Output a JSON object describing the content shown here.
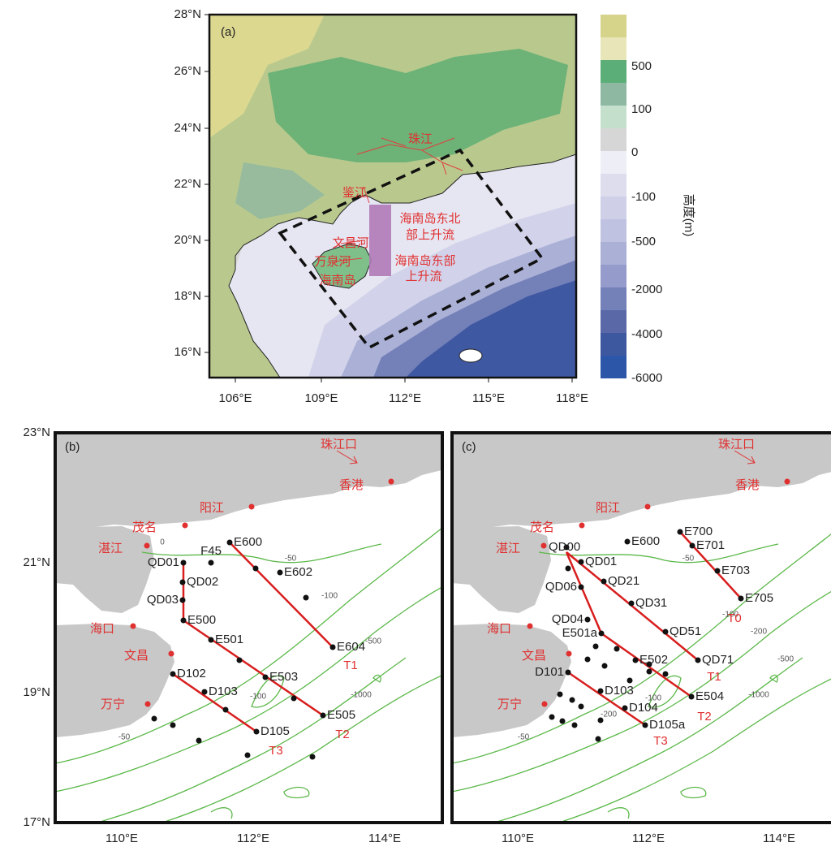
{
  "panel_a": {
    "label": "(a)",
    "lat_ticks": [
      "28°N",
      "26°N",
      "24°N",
      "22°N",
      "20°N",
      "18°N",
      "16°N"
    ],
    "lon_ticks": [
      "106°E",
      "109°E",
      "112°E",
      "115°E",
      "118°E"
    ],
    "colorbar": {
      "title": "高度(m)",
      "labels": [
        "500",
        "100",
        "0",
        "-100",
        "-500",
        "-2000",
        "-4000",
        "-6000"
      ]
    },
    "annotations": [
      "珠江",
      "鉴江",
      "文昌河",
      "万泉河",
      "海南岛",
      [
        "海南岛东北",
        "部上升流"
      ],
      [
        "海南岛东部",
        "上升流"
      ]
    ]
  },
  "panel_b": {
    "label": "(b)",
    "lat_ticks": [
      "23°N",
      "21°N",
      "19°N",
      "17°N"
    ],
    "lon_ticks": [
      "110°E",
      "112°E",
      "114°E"
    ],
    "places": [
      "珠江口",
      "香港",
      "阳江",
      "茂名",
      "湛江",
      "海口",
      "文昌",
      "万宁"
    ],
    "stations": [
      "E600",
      "F45",
      "QD01",
      "QD02",
      "QD03",
      "E500",
      "E501",
      "E503",
      "E602",
      "E604",
      "E505",
      "D102",
      "D103",
      "D105"
    ],
    "transects": [
      "T1",
      "T2",
      "T3"
    ],
    "contour_labels": [
      "0",
      "-50",
      "-100",
      "-500",
      "-1000",
      "-100",
      "-50"
    ]
  },
  "panel_c": {
    "label": "(c)",
    "lon_ticks": [
      "110°E",
      "112°E",
      "114°E"
    ],
    "places": [
      "珠江口",
      "香港",
      "阳江",
      "茂名",
      "湛江",
      "海口",
      "文昌",
      "万宁"
    ],
    "stations": [
      "E700",
      "E701",
      "E703",
      "E705",
      "E600",
      "QD00",
      "QD01",
      "QD06",
      "QD21",
      "QD31",
      "QD04",
      "E501a",
      "QD51",
      "E502",
      "QD71",
      "D101",
      "D103",
      "D104",
      "D105a",
      "E504"
    ],
    "transects": [
      "T0",
      "T1",
      "T2",
      "T3"
    ],
    "contour_labels": [
      "-50",
      "-100",
      "-200",
      "-500",
      "-1000",
      "-100",
      "-50",
      "-200"
    ]
  }
}
